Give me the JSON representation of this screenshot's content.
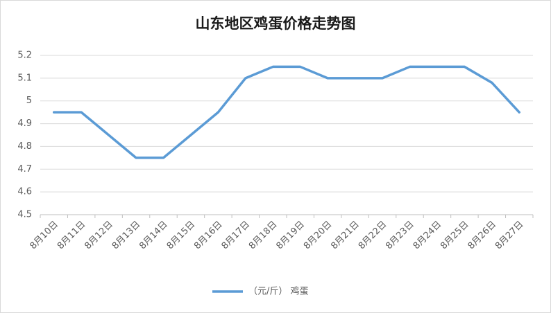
{
  "chart_data": {
    "type": "line",
    "title": "山东地区鸡蛋价格走势图",
    "categories": [
      "8月10日",
      "8月11日",
      "8月12日",
      "8月13日",
      "8月14日",
      "8月15日",
      "8月16日",
      "8月17日",
      "8月18日",
      "8月19日",
      "8月20日",
      "8月21日",
      "8月22日",
      "8月23日",
      "8月24日",
      "8月25日",
      "8月26日",
      "8月27日"
    ],
    "series": [
      {
        "name": "（元/斤） 鸡蛋",
        "color": "#5b9bd5",
        "values": [
          4.95,
          4.95,
          4.85,
          4.75,
          4.75,
          4.85,
          4.95,
          5.1,
          5.15,
          5.15,
          5.1,
          5.1,
          5.1,
          5.15,
          5.15,
          5.15,
          5.08,
          4.95
        ]
      }
    ],
    "ylim": [
      4.5,
      5.2
    ],
    "yticks": [
      4.5,
      4.6,
      4.7,
      4.8,
      4.9,
      5,
      5.1,
      5.2
    ],
    "grid": true,
    "legend": "bottom"
  }
}
